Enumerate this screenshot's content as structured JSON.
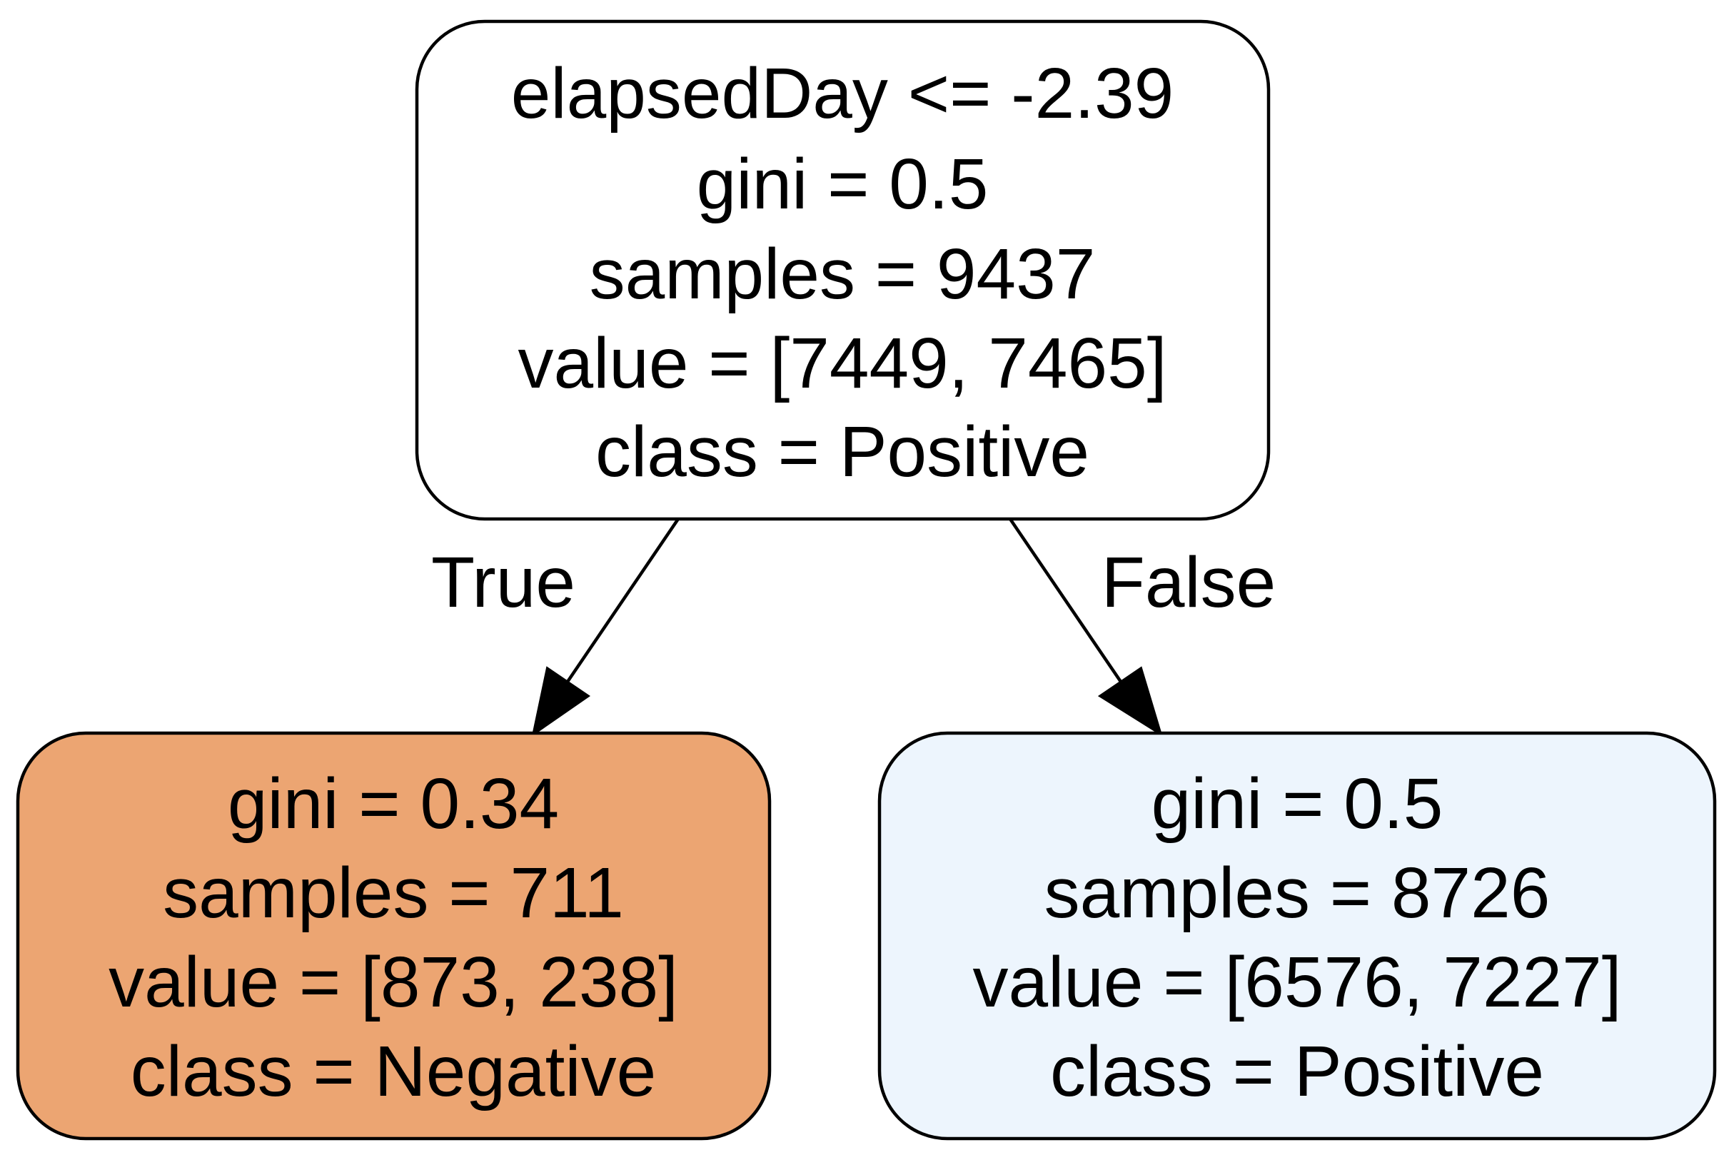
{
  "tree": {
    "root": {
      "lines": [
        "elapsedDay <= -2.39",
        "gini = 0.5",
        "samples = 9437",
        "value = [7449, 7465]",
        "class = Positive"
      ],
      "fill": "#ffffff"
    },
    "left": {
      "lines": [
        "gini = 0.34",
        "samples = 711",
        "value = [873, 238]",
        "class = Negative"
      ],
      "fill": "#eca572"
    },
    "right": {
      "lines": [
        "gini = 0.5",
        "samples = 8726",
        "value = [6576, 7227]",
        "class = Positive"
      ],
      "fill": "#edf5fd"
    },
    "edges": {
      "true_label": "True",
      "false_label": "False"
    }
  }
}
